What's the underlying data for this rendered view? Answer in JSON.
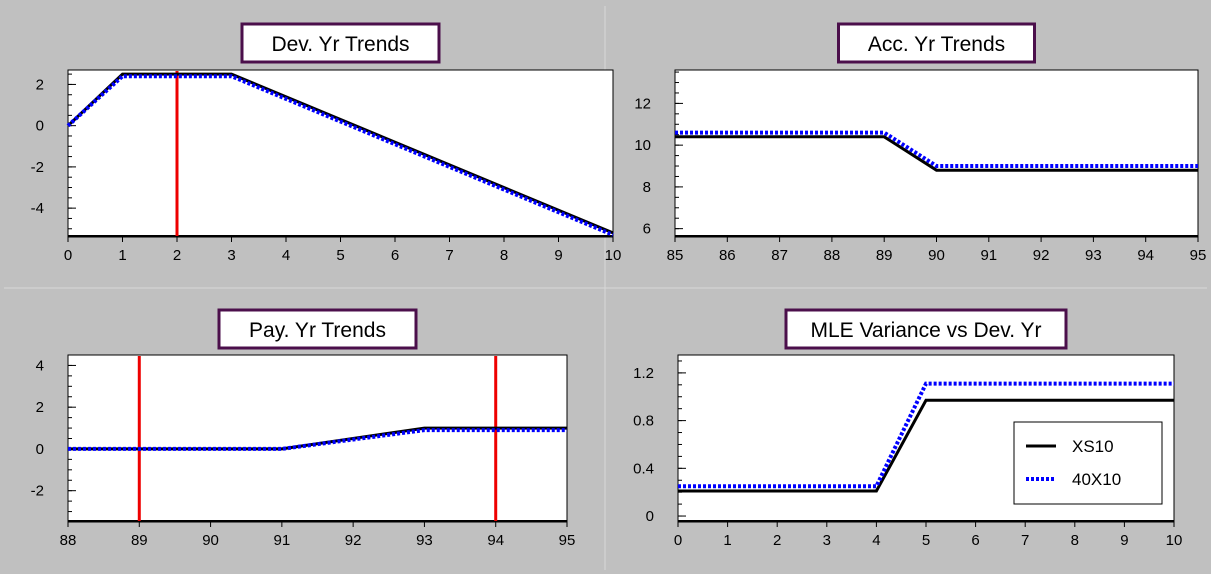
{
  "colors": {
    "background": "#c0c0c0",
    "plot_bg": "#ffffff",
    "frame": "#000000",
    "title_border": "#4b0f4b",
    "series_solid": "#000000",
    "series_dotted": "#0000ff",
    "marker_line": "#ee0000"
  },
  "chart_data": [
    {
      "type": "line",
      "title": "Dev. Yr Trends",
      "x_ticks": [
        0,
        1,
        2,
        3,
        4,
        5,
        6,
        7,
        8,
        9,
        10
      ],
      "xlim": [
        0,
        10
      ],
      "ylim": [
        -5.4,
        2.7
      ],
      "y_ticks": [
        2,
        0,
        -2,
        -4
      ],
      "y_minor_step": 0.5,
      "vlines": [
        2
      ],
      "series": [
        {
          "style": "solid",
          "x": [
            0,
            1,
            2,
            3,
            10
          ],
          "y": [
            0,
            2.5,
            2.5,
            2.5,
            -5.2
          ]
        },
        {
          "style": "dotted",
          "x": [
            0,
            1,
            2,
            3,
            10
          ],
          "y": [
            0,
            2.4,
            2.4,
            2.4,
            -5.3
          ]
        }
      ]
    },
    {
      "type": "line",
      "title": "Acc. Yr Trends",
      "x_ticks": [
        85,
        86,
        87,
        88,
        89,
        90,
        91,
        92,
        93,
        94,
        95
      ],
      "xlim": [
        85,
        95
      ],
      "ylim": [
        5.6,
        13.6
      ],
      "y_ticks": [
        12,
        10,
        8,
        6
      ],
      "y_minor_step": 0.5,
      "vlines": [],
      "series": [
        {
          "style": "solid",
          "x": [
            85,
            89,
            90,
            95
          ],
          "y": [
            10.4,
            10.4,
            8.8,
            8.8
          ]
        },
        {
          "style": "dotted",
          "x": [
            85,
            89,
            90,
            95
          ],
          "y": [
            10.6,
            10.6,
            9.0,
            9.0
          ]
        }
      ]
    },
    {
      "type": "line",
      "title": "Pay. Yr Trends",
      "x_ticks": [
        88,
        89,
        90,
        91,
        92,
        93,
        94,
        95
      ],
      "xlim": [
        88,
        95
      ],
      "ylim": [
        -3.5,
        4.5
      ],
      "y_ticks": [
        4,
        2,
        0,
        -2
      ],
      "y_minor_step": 0.5,
      "vlines": [
        89,
        94
      ],
      "series": [
        {
          "style": "solid",
          "x": [
            88,
            89,
            91,
            93,
            95
          ],
          "y": [
            0,
            0,
            0,
            1.0,
            1.0
          ]
        },
        {
          "style": "dotted",
          "x": [
            88,
            89,
            91,
            93,
            95
          ],
          "y": [
            0,
            0,
            0,
            0.9,
            0.9
          ]
        }
      ]
    },
    {
      "type": "line",
      "title": "MLE Variance vs Dev. Yr",
      "x_ticks": [
        0,
        1,
        2,
        3,
        4,
        5,
        6,
        7,
        8,
        9,
        10
      ],
      "xlim": [
        0,
        10
      ],
      "ylim": [
        -0.05,
        1.35
      ],
      "y_ticks": [
        "1.2",
        "0.8",
        "0.4",
        "0"
      ],
      "y_minor_step": 0.1,
      "vlines": [],
      "legend": {
        "placement": "right"
      },
      "series": [
        {
          "name": "XS10",
          "style": "solid",
          "x": [
            0,
            4,
            5,
            10
          ],
          "y": [
            0.21,
            0.21,
            0.97,
            0.97
          ]
        },
        {
          "name": "40X10",
          "style": "dotted",
          "x": [
            0,
            4,
            5,
            10
          ],
          "y": [
            0.25,
            0.25,
            1.11,
            1.11
          ]
        }
      ]
    }
  ]
}
